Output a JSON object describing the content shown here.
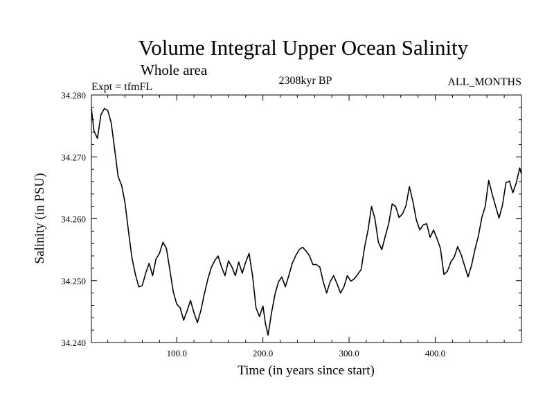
{
  "chart_data": {
    "type": "line",
    "title": "Volume Integral Upper Ocean Salinity",
    "subtitle": "Whole area",
    "expt_label": "Expt = tfmFL",
    "period_label": "2308kyr BP",
    "months_label": "ALL_MONTHS",
    "xlabel": "Time (in years since start)",
    "ylabel": "Salinity (in PSU)",
    "xlim": [
      1,
      500
    ],
    "ylim": [
      34.24,
      34.28
    ],
    "x_ticks": [
      100,
      200,
      300,
      400
    ],
    "x_tick_labels": [
      "100.0",
      "200.0",
      "300.0",
      "400.0"
    ],
    "y_ticks": [
      34.24,
      34.25,
      34.26,
      34.27,
      34.28
    ],
    "y_tick_labels": [
      "34.240",
      "34.250",
      "34.260",
      "34.270",
      "34.280"
    ],
    "series": [
      {
        "name": "Salinity",
        "x": [
          1,
          4,
          8,
          12,
          16,
          20,
          24,
          28,
          32,
          36,
          40,
          44,
          48,
          52,
          56,
          60,
          64,
          68,
          72,
          76,
          80,
          84,
          88,
          92,
          96,
          100,
          104,
          108,
          112,
          116,
          120,
          124,
          128,
          132,
          136,
          140,
          144,
          148,
          152,
          156,
          160,
          164,
          168,
          172,
          176,
          180,
          184,
          188,
          192,
          196,
          200,
          203,
          206,
          210,
          214,
          218,
          222,
          226,
          230,
          234,
          238,
          242,
          246,
          250,
          254,
          258,
          262,
          266,
          270,
          274,
          278,
          282,
          286,
          290,
          294,
          298,
          302,
          306,
          310,
          314,
          318,
          322,
          326,
          330,
          334,
          338,
          342,
          346,
          350,
          354,
          358,
          362,
          366,
          370,
          374,
          378,
          382,
          386,
          390,
          394,
          398,
          402,
          406,
          410,
          414,
          418,
          422,
          426,
          430,
          434,
          438,
          442,
          446,
          450,
          454,
          458,
          462,
          466,
          470,
          474,
          478,
          482,
          486,
          490,
          494,
          498,
          500
        ],
        "values": [
          34.2778,
          34.2742,
          34.273,
          34.2768,
          34.2778,
          34.2775,
          34.2755,
          34.2712,
          34.2668,
          34.2654,
          34.2626,
          34.258,
          34.2537,
          34.251,
          34.249,
          34.2492,
          34.2512,
          34.2528,
          34.2508,
          34.2535,
          34.2544,
          34.2562,
          34.2552,
          34.2518,
          34.2482,
          34.2462,
          34.2456,
          34.2436,
          34.2451,
          34.2468,
          34.2448,
          34.2432,
          34.2452,
          34.2478,
          34.2502,
          34.2521,
          34.2532,
          34.254,
          34.2522,
          34.2508,
          34.2532,
          34.2522,
          34.2508,
          34.253,
          34.2512,
          34.253,
          34.2544,
          34.2508,
          34.2456,
          34.2442,
          34.2459,
          34.243,
          34.2412,
          34.2448,
          34.2478,
          34.2498,
          34.2506,
          34.249,
          34.2508,
          34.2528,
          34.254,
          34.255,
          34.2554,
          34.2548,
          34.254,
          34.2526,
          34.2526,
          34.2522,
          34.2498,
          34.248,
          34.2498,
          34.2508,
          34.2495,
          34.248,
          34.249,
          34.2508,
          34.2499,
          34.2503,
          34.251,
          34.2518,
          34.2554,
          34.2582,
          34.262,
          34.26,
          34.2562,
          34.255,
          34.2572,
          34.2592,
          34.2624,
          34.262,
          34.2602,
          34.2608,
          34.2621,
          34.2652,
          34.2628,
          34.2598,
          34.2582,
          34.259,
          34.2592,
          34.257,
          34.2582,
          34.2568,
          34.2552,
          34.251,
          34.2515,
          34.253,
          34.2538,
          34.2555,
          34.2542,
          34.2524,
          34.2506,
          34.2524,
          34.255,
          34.2572,
          34.2602,
          34.262,
          34.2662,
          34.264,
          34.262,
          34.2601,
          34.2622,
          34.2658,
          34.2661,
          34.2642,
          34.2658,
          34.2682,
          34.2672
        ]
      }
    ]
  }
}
